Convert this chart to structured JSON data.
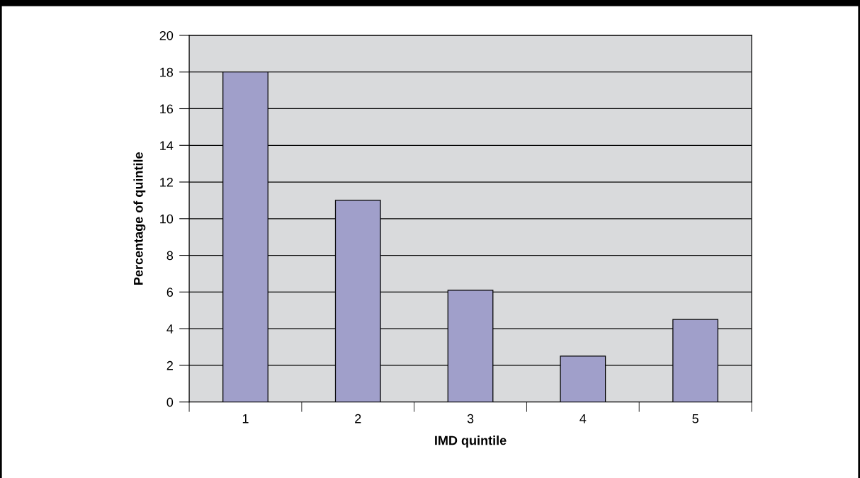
{
  "chart_data": {
    "type": "bar",
    "xlabel": "IMD quintile",
    "ylabel": "Percentage of quintile",
    "categories": [
      "1",
      "2",
      "3",
      "4",
      "5"
    ],
    "values": [
      18,
      11.0,
      6.1,
      2.5,
      4.5
    ],
    "color": "#a09fca",
    "ylim": [
      0,
      20
    ],
    "yticks": [
      0,
      2,
      4,
      6,
      8,
      10,
      12,
      14,
      16,
      18,
      20
    ],
    "grid": "y",
    "legend": false
  }
}
